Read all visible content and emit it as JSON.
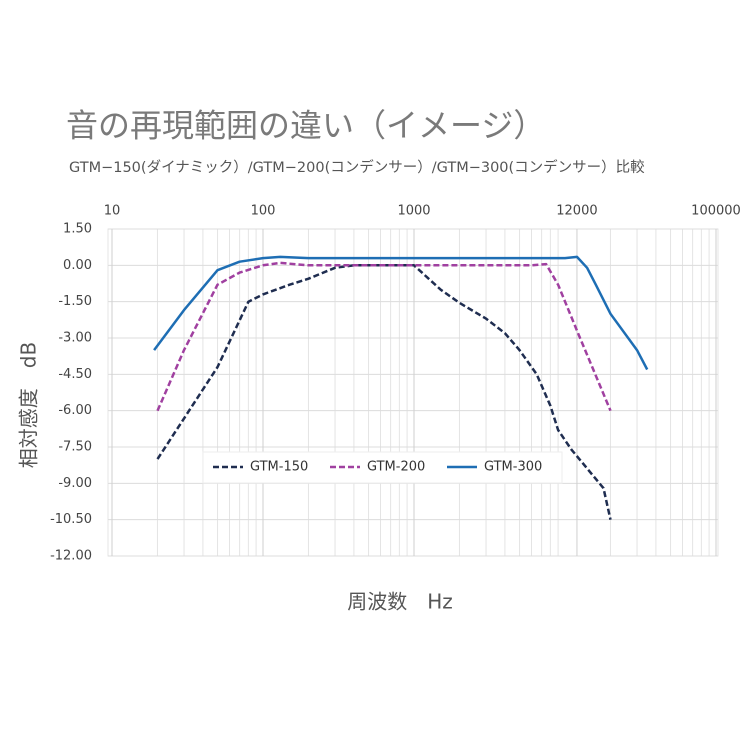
{
  "chart_data": {
    "type": "line",
    "title": "音の再現範囲の違い（イメージ）",
    "subtitle": "GTM−150(ダイナミック）/GTM−200(コンデンサー）/GTM−300(コンデンサー）比較",
    "x_label": "周波数　Hz",
    "y_label": "相対感度　dB",
    "x_log": true,
    "xlim": [
      10,
      100000
    ],
    "xticks": [
      10,
      100,
      1000,
      12000,
      100000
    ],
    "ylim": [
      -12,
      1.5
    ],
    "yticks": [
      {
        "value": 1.5,
        "label": "1.50"
      },
      {
        "value": 0,
        "label": "0.00"
      },
      {
        "value": -1.5,
        "label": "-1.50"
      },
      {
        "value": -3,
        "label": "-3.00"
      },
      {
        "value": -4.5,
        "label": "-4.50"
      },
      {
        "value": -6,
        "label": "-6.00"
      },
      {
        "value": -7.5,
        "label": "-7.50"
      },
      {
        "value": -9,
        "label": "-9.00"
      },
      {
        "value": -10.5,
        "label": "-10.50"
      },
      {
        "value": -12,
        "label": "-12.00"
      }
    ],
    "grid": true,
    "minor_grid": true,
    "legend": "lower center",
    "series": [
      {
        "name": "GTM-150",
        "color": "#1f2d50",
        "dash": true,
        "x": [
          20,
          50,
          80,
          100,
          150,
          200,
          300,
          400,
          1000,
          1500,
          2000,
          3000,
          4000,
          5000,
          6500,
          8000,
          9000,
          11000,
          18000,
          20000
        ],
        "values": [
          -8.0,
          -4.2,
          -1.5,
          -1.2,
          -0.8,
          -0.55,
          -0.1,
          0,
          0,
          -1.0,
          -1.55,
          -2.2,
          -2.8,
          -3.5,
          -4.5,
          -5.8,
          -6.8,
          -7.6,
          -9.2,
          -10.5
        ]
      },
      {
        "name": "GTM-200",
        "color": "#a040a0",
        "dash": true,
        "x": [
          20,
          30,
          50,
          70,
          100,
          130,
          200,
          6000,
          7500,
          9000,
          12000,
          20000
        ],
        "values": [
          -6.0,
          -3.5,
          -0.8,
          -0.3,
          0,
          0.1,
          0,
          0,
          0.05,
          -0.8,
          -2.7,
          -6.0
        ]
      },
      {
        "name": "GTM-300",
        "color": "#1e6eb4",
        "dash": false,
        "x": [
          19,
          30,
          50,
          70,
          100,
          130,
          200,
          10000,
          12000,
          14000,
          16000,
          20000,
          30000,
          35000
        ],
        "values": [
          -3.5,
          -1.85,
          -0.2,
          0.15,
          0.3,
          0.35,
          0.3,
          0.3,
          0.35,
          -0.1,
          -0.8,
          -2.0,
          -3.5,
          -4.3
        ]
      }
    ]
  }
}
